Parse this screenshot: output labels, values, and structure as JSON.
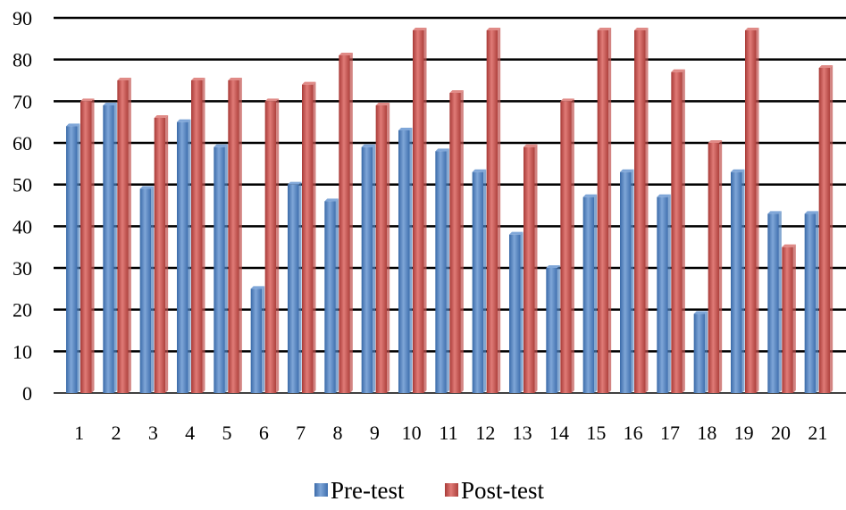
{
  "chart_data": {
    "type": "bar",
    "title": "",
    "xlabel": "",
    "ylabel": "",
    "ylim": [
      0,
      90
    ],
    "y_ticks": [
      0,
      10,
      20,
      30,
      40,
      50,
      60,
      70,
      80,
      90
    ],
    "grid": true,
    "legend_position": "bottom",
    "categories": [
      "1",
      "2",
      "3",
      "4",
      "5",
      "6",
      "7",
      "8",
      "9",
      "10",
      "11",
      "12",
      "13",
      "14",
      "15",
      "16",
      "17",
      "18",
      "19",
      "20",
      "21"
    ],
    "series": [
      {
        "name": "Pre-test",
        "color": "#4f81bd",
        "values": [
          64,
          69,
          49,
          65,
          59,
          25,
          50,
          46,
          59,
          63,
          58,
          53,
          38,
          30,
          47,
          53,
          47,
          19,
          53,
          43,
          43
        ]
      },
      {
        "name": "Post-test",
        "color": "#c0504d",
        "values": [
          70,
          75,
          66,
          75,
          75,
          70,
          74,
          81,
          69,
          87,
          72,
          87,
          59,
          70,
          87,
          87,
          77,
          60,
          87,
          35,
          78
        ]
      }
    ]
  }
}
